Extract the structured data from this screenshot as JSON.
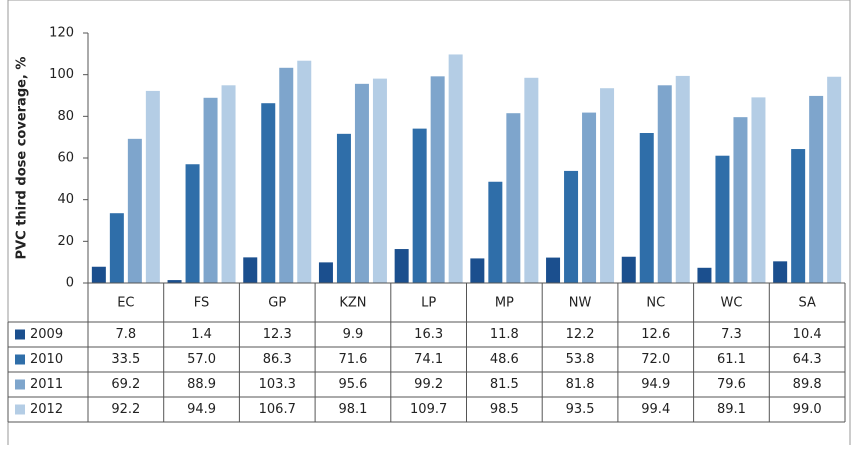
{
  "chart_data": {
    "type": "bar",
    "y_label": "PVC third dose coverage, %",
    "categories": [
      "EC",
      "FS",
      "GP",
      "KZN",
      "LP",
      "MP",
      "NW",
      "NC",
      "WC",
      "SA"
    ],
    "ylim": [
      0,
      120
    ],
    "yticks": [
      0,
      20,
      40,
      60,
      80,
      100,
      120
    ],
    "grid": false,
    "series": [
      {
        "name": "2009",
        "color": "#1b4f8e",
        "values": [
          7.8,
          1.4,
          12.3,
          9.9,
          16.3,
          11.8,
          12.2,
          12.6,
          7.3,
          10.4
        ],
        "value_labels": [
          "7.8",
          "1.4",
          "12.3",
          "9.9",
          "16.3",
          "11.8",
          "12.2",
          "12.6",
          "7.3",
          "10.4"
        ]
      },
      {
        "name": "2010",
        "color": "#2f6ea9",
        "values": [
          33.5,
          57,
          86.3,
          71.6,
          74.1,
          48.6,
          53.8,
          72,
          61.1,
          64.3
        ],
        "value_labels": [
          "33.5",
          "57.0",
          "86.3",
          "71.6",
          "74.1",
          "48.6",
          "53.8",
          "72.0",
          "61.1",
          "64.3"
        ]
      },
      {
        "name": "2011",
        "color": "#7ea5cc",
        "values": [
          69.2,
          88.9,
          103.3,
          95.6,
          99.2,
          81.5,
          81.8,
          94.9,
          79.6,
          89.8
        ],
        "value_labels": [
          "69.2",
          "88.9",
          "103.3",
          "95.6",
          "99.2",
          "81.5",
          "81.8",
          "94.9",
          "79.6",
          "89.8"
        ]
      },
      {
        "name": "2012",
        "color": "#b4cde5",
        "values": [
          92.2,
          94.9,
          106.7,
          98.1,
          109.7,
          98.5,
          93.5,
          99.4,
          89.1,
          99
        ],
        "value_labels": [
          "92.2",
          "94.9",
          "106.7",
          "98.1",
          "109.7",
          "98.5",
          "93.5",
          "99.4",
          "89.1",
          "99.0"
        ]
      }
    ]
  }
}
